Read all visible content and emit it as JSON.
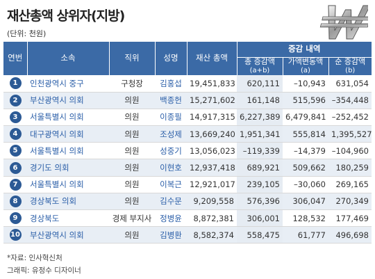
{
  "title": "재산총액 상위자(지방)",
  "unit": "(단위: 천원)",
  "header": {
    "idx": "연번",
    "org": "소속",
    "position": "직위",
    "name": "성명",
    "asset": "재산 총액",
    "group": "증감 내역",
    "total_change": "총 증감액",
    "total_change_sub": "(a+b)",
    "price_change": "가액변동액",
    "price_change_sub": "(a)",
    "net_change": "순 증감액",
    "net_change_sub": "(b)"
  },
  "rows": [
    {
      "idx": "1",
      "org": "인천광역시 중구",
      "position": "구청장",
      "name": "김홍섭",
      "asset": "19,451,833",
      "total": "620,111",
      "price": "–10,943",
      "net": "631,054"
    },
    {
      "idx": "2",
      "org": "부산광역시 의회",
      "position": "의원",
      "name": "백종헌",
      "asset": "15,271,602",
      "total": "161,148",
      "price": "515,596",
      "net": "–354,448"
    },
    {
      "idx": "3",
      "org": "서울특별시 의회",
      "position": "의원",
      "name": "이종필",
      "asset": "14,917,315",
      "total": "6,227,389",
      "price": "6,479,841",
      "net": "–252,452"
    },
    {
      "idx": "4",
      "org": "대구광역시 의회",
      "position": "의원",
      "name": "조성제",
      "asset": "13,669,240",
      "total": "1,951,341",
      "price": "555,814",
      "net": "1,395,527"
    },
    {
      "idx": "5",
      "org": "서울특별시 의회",
      "position": "의원",
      "name": "성중기",
      "asset": "13,056,023",
      "total": "–119,339",
      "price": "–14,379",
      "net": "–104,960"
    },
    {
      "idx": "6",
      "org": "경기도 의회",
      "position": "의원",
      "name": "이현호",
      "asset": "12,937,418",
      "total": "689,921",
      "price": "509,662",
      "net": "180,259"
    },
    {
      "idx": "7",
      "org": "서울특별시 의회",
      "position": "의원",
      "name": "이복근",
      "asset": "12,921,017",
      "total": "239,105",
      "price": "–30,060",
      "net": "269,165"
    },
    {
      "idx": "8",
      "org": "경상북도 의회",
      "position": "의원",
      "name": "김수문",
      "asset": "9,209,558",
      "total": "576,396",
      "price": "306,047",
      "net": "270,349"
    },
    {
      "idx": "9",
      "org": "경상북도",
      "position": "경제 부지사",
      "name": "정병윤",
      "asset": "8,872,381",
      "total": "306,001",
      "price": "128,532",
      "net": "177,469"
    },
    {
      "idx": "10",
      "org": "부산광역시 의회",
      "position": "의원",
      "name": "김병환",
      "asset": "8,582,374",
      "total": "558,475",
      "price": "61,777",
      "net": "496,698"
    }
  ],
  "footer": {
    "source": "*자료: 인사혁신처",
    "graphic": "그래픽: 유정수 디자이너"
  },
  "colors": {
    "header_bg": "#3b6aa6",
    "badge_bg": "#2c5a95",
    "link_text": "#2a5ea8",
    "stripe": "#e8eef5"
  },
  "icons": {
    "logo": "won-sign-icon"
  }
}
